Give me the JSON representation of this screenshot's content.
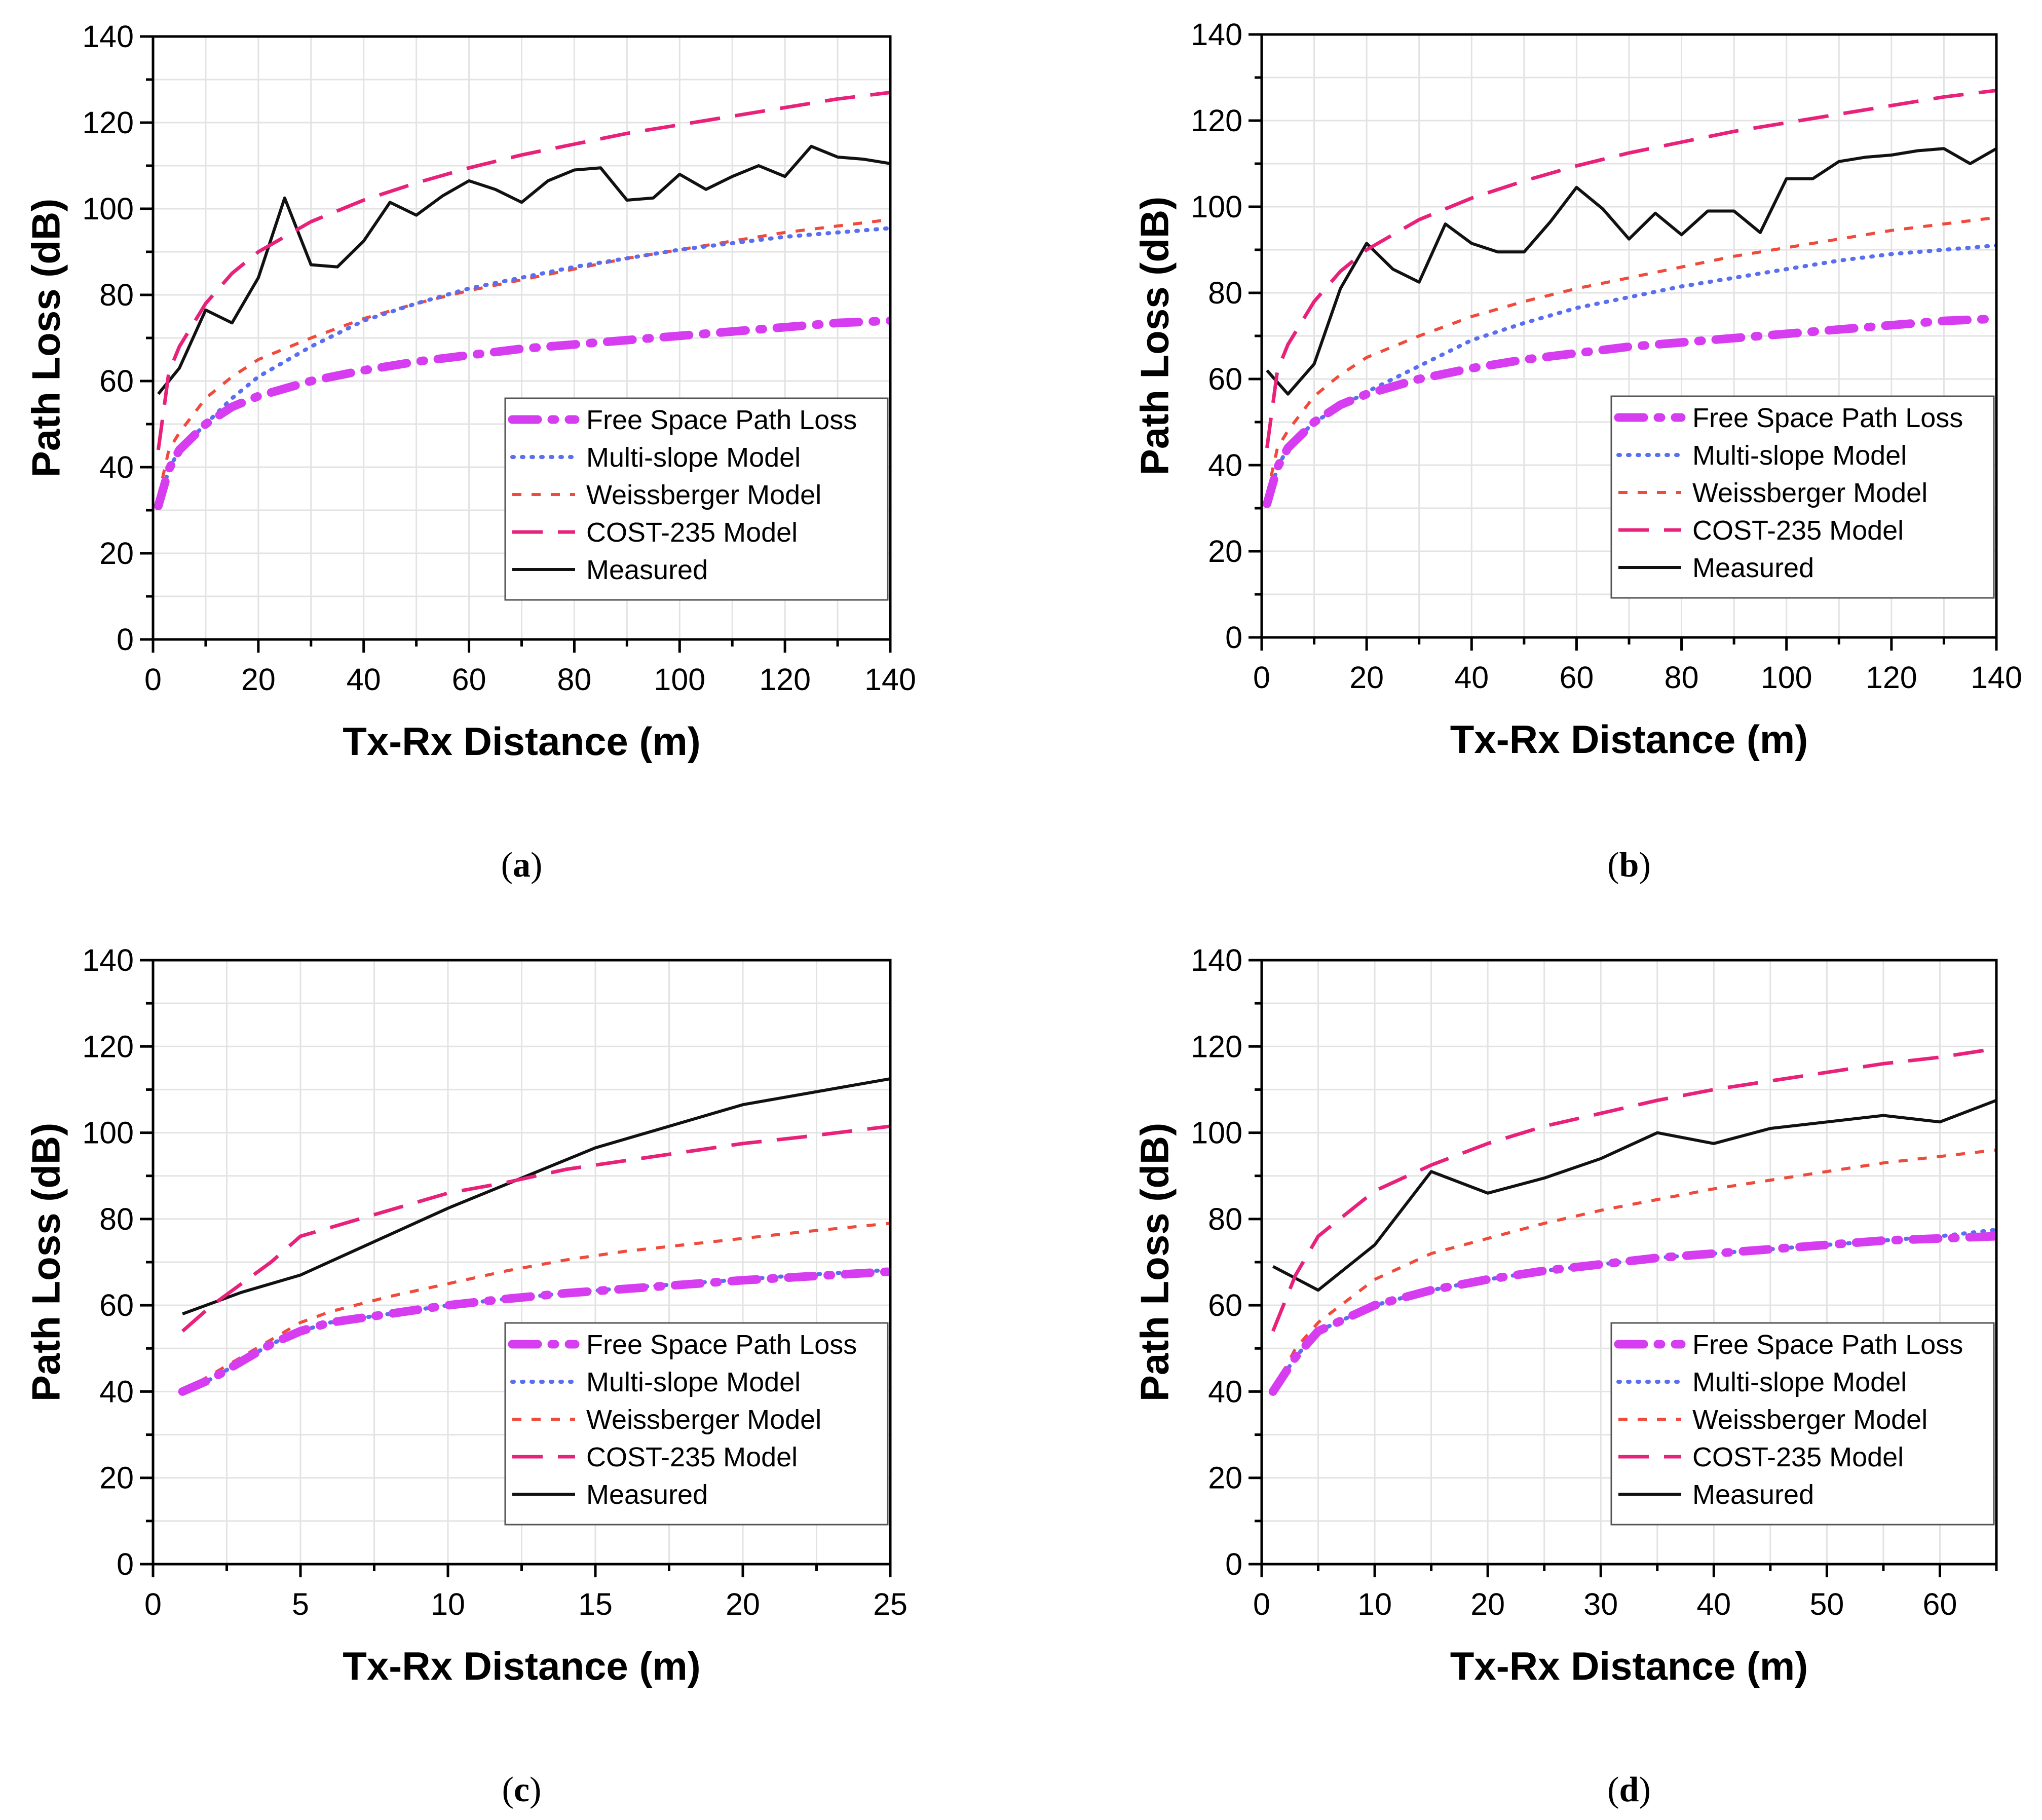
{
  "chart_data": [
    {
      "id": "a",
      "type": "line",
      "caption": "a",
      "xlabel": "Tx-Rx Distance (m)",
      "ylabel": "Path Loss (dB)",
      "xlim": [
        0,
        140
      ],
      "ylim": [
        0,
        140
      ],
      "xticks": [
        0,
        20,
        40,
        60,
        80,
        100,
        120,
        140
      ],
      "yticks": [
        0,
        20,
        40,
        60,
        80,
        100,
        120,
        140
      ],
      "grid": true,
      "legend_position": "bottom-right",
      "series": [
        {
          "name": "Free Space Path Loss",
          "style": "fspl",
          "color": "#d63cf0",
          "x": [
            1,
            3,
            5,
            10,
            15,
            20,
            30,
            40,
            50,
            60,
            70,
            80,
            90,
            100,
            110,
            120,
            130,
            140
          ],
          "y": [
            31,
            39.5,
            44,
            50,
            54,
            56.5,
            60,
            62.5,
            64.5,
            66,
            67.5,
            68.5,
            69.5,
            70.5,
            71.5,
            72.5,
            73.5,
            74
          ]
        },
        {
          "name": "Multi-slope Model",
          "style": "dotted",
          "color": "#5a6ff0",
          "x": [
            1,
            3,
            5,
            10,
            15,
            20,
            30,
            40,
            50,
            60,
            70,
            80,
            90,
            100,
            110,
            120,
            130,
            140
          ],
          "y": [
            31,
            39.5,
            44,
            50,
            56,
            61,
            68,
            74,
            78,
            81.5,
            84,
            86.5,
            88.5,
            90.5,
            92,
            93.5,
            94.5,
            95.5
          ]
        },
        {
          "name": "Weissberger Model",
          "style": "short-dash",
          "color": "#f04a3c",
          "x": [
            1,
            3,
            5,
            10,
            15,
            20,
            30,
            40,
            50,
            60,
            70,
            80,
            90,
            100,
            110,
            120,
            130,
            140
          ],
          "y": [
            33,
            44,
            48,
            56,
            61,
            65,
            70,
            74.5,
            78,
            81,
            83.5,
            86,
            88.5,
            90.5,
            92.5,
            94.5,
            96,
            97.5
          ]
        },
        {
          "name": "COST-235 Model",
          "style": "long-dash",
          "color": "#e8217a",
          "x": [
            1,
            3,
            5,
            10,
            15,
            20,
            30,
            40,
            50,
            60,
            70,
            80,
            90,
            100,
            110,
            120,
            130,
            140
          ],
          "y": [
            44,
            62,
            68,
            78,
            85,
            90,
            97,
            102,
            106,
            109.5,
            112.5,
            115,
            117.5,
            119.5,
            121.5,
            123.5,
            125.5,
            127
          ]
        },
        {
          "name": "Measured",
          "style": "solid",
          "color": "#111111",
          "x": [
            1,
            5,
            10,
            15,
            20,
            25,
            30,
            35,
            40,
            45,
            50,
            55,
            60,
            65,
            70,
            75,
            80,
            85,
            90,
            95,
            100,
            105,
            110,
            115,
            120,
            125,
            130,
            135,
            140
          ],
          "y": [
            57,
            63,
            76.5,
            73.5,
            84,
            102.5,
            87,
            86.5,
            92.5,
            101.5,
            98.5,
            103,
            106.5,
            104.5,
            101.5,
            106.5,
            109,
            109.5,
            102,
            102.5,
            108,
            104.5,
            107.5,
            110,
            107.5,
            114.5,
            112,
            111.5,
            110.5
          ]
        }
      ]
    },
    {
      "id": "b",
      "type": "line",
      "caption": "b",
      "xlabel": "Tx-Rx Distance (m)",
      "ylabel": "Path Loss (dB)",
      "xlim": [
        0,
        140
      ],
      "ylim": [
        0,
        140
      ],
      "xticks": [
        0,
        20,
        40,
        60,
        80,
        100,
        120,
        140
      ],
      "yticks": [
        0,
        20,
        40,
        60,
        80,
        100,
        120,
        140
      ],
      "grid": true,
      "legend_position": "bottom-right",
      "series": [
        {
          "name": "Free Space Path Loss",
          "style": "fspl",
          "color": "#d63cf0",
          "x": [
            1,
            3,
            5,
            10,
            15,
            20,
            30,
            40,
            50,
            60,
            70,
            80,
            90,
            100,
            110,
            120,
            130,
            140
          ],
          "y": [
            31,
            39.5,
            44,
            50,
            54,
            56.5,
            60,
            62.5,
            64.5,
            66,
            67.5,
            68.5,
            69.5,
            70.5,
            71.5,
            72.5,
            73.5,
            74
          ]
        },
        {
          "name": "Multi-slope Model",
          "style": "dotted",
          "color": "#5a6ff0",
          "x": [
            1,
            3,
            5,
            10,
            15,
            20,
            30,
            40,
            50,
            60,
            70,
            80,
            90,
            100,
            110,
            120,
            130,
            140
          ],
          "y": [
            31,
            39.5,
            44,
            50,
            53.5,
            57,
            63,
            69,
            73,
            76.5,
            79,
            81.5,
            83.5,
            85.5,
            87.5,
            89,
            90,
            91
          ]
        },
        {
          "name": "Weissberger Model",
          "style": "short-dash",
          "color": "#f04a3c",
          "x": [
            1,
            3,
            5,
            10,
            15,
            20,
            30,
            40,
            50,
            60,
            70,
            80,
            90,
            100,
            110,
            120,
            130,
            140
          ],
          "y": [
            33,
            44,
            48,
            56,
            61,
            65,
            70,
            74.5,
            78,
            81,
            83.5,
            86,
            88.5,
            90.5,
            92.5,
            94.5,
            96,
            97.5
          ]
        },
        {
          "name": "COST-235 Model",
          "style": "long-dash",
          "color": "#e8217a",
          "x": [
            1,
            3,
            5,
            10,
            15,
            20,
            30,
            40,
            50,
            60,
            70,
            80,
            90,
            100,
            110,
            120,
            130,
            140
          ],
          "y": [
            44,
            62,
            68,
            78,
            85,
            90,
            97,
            102,
            106,
            109.5,
            112.5,
            115,
            117.5,
            119.5,
            121.5,
            123.5,
            125.5,
            127
          ]
        },
        {
          "name": "Measured",
          "style": "solid",
          "color": "#111111",
          "x": [
            1,
            5,
            10,
            15,
            20,
            25,
            30,
            35,
            40,
            45,
            50,
            55,
            60,
            65,
            70,
            75,
            80,
            85,
            90,
            95,
            100,
            105,
            110,
            115,
            120,
            125,
            130,
            135,
            140
          ],
          "y": [
            62,
            56.5,
            63.5,
            81,
            91.5,
            85.5,
            82.5,
            96,
            91.5,
            89.5,
            89.5,
            96.5,
            104.5,
            99.5,
            92.5,
            98.5,
            93.5,
            99,
            99,
            94,
            106.5,
            106.5,
            110.5,
            111.5,
            112,
            113,
            113.5,
            110,
            113.5
          ]
        }
      ]
    },
    {
      "id": "c",
      "type": "line",
      "caption": "c",
      "xlabel": "Tx-Rx Distance (m)",
      "ylabel": "Path Loss (dB)",
      "xlim": [
        0,
        25
      ],
      "ylim": [
        0,
        140
      ],
      "xticks": [
        0,
        5,
        10,
        15,
        20,
        25
      ],
      "yticks": [
        0,
        20,
        40,
        60,
        80,
        100,
        120,
        140
      ],
      "grid": true,
      "legend_position": "bottom-right",
      "series": [
        {
          "name": "Free Space Path Loss",
          "style": "fspl",
          "color": "#d63cf0",
          "x": [
            1,
            2,
            3,
            4,
            5,
            6,
            8,
            10,
            12,
            14,
            16,
            18,
            20,
            22,
            25
          ],
          "y": [
            40,
            43,
            47,
            51,
            54,
            56,
            58,
            60,
            61.5,
            62.8,
            63.8,
            64.8,
            65.8,
            66.6,
            67.8
          ]
        },
        {
          "name": "Multi-slope Model",
          "style": "dotted",
          "color": "#5a6ff0",
          "x": [
            1,
            2,
            3,
            4,
            5,
            6,
            8,
            10,
            12,
            14,
            16,
            18,
            20,
            22,
            25
          ],
          "y": [
            40,
            43,
            47,
            51,
            54,
            56,
            58,
            60,
            61.5,
            62.8,
            64,
            65,
            66,
            67,
            68.2
          ]
        },
        {
          "name": "Weissberger Model",
          "style": "short-dash",
          "color": "#f04a3c",
          "x": [
            1,
            2,
            3,
            4,
            5,
            6,
            8,
            10,
            12,
            14,
            16,
            18,
            20,
            22,
            25
          ],
          "y": [
            40,
            44,
            48,
            52,
            56,
            58.5,
            62,
            65,
            68,
            70.5,
            72.5,
            74,
            75.5,
            77,
            79
          ]
        },
        {
          "name": "COST-235 Model",
          "style": "long-dash",
          "color": "#e8217a",
          "x": [
            1,
            2,
            3,
            4,
            5,
            6,
            8,
            10,
            12,
            14,
            16,
            18,
            20,
            22,
            25
          ],
          "y": [
            54,
            60,
            65,
            70,
            76,
            78,
            82,
            86,
            88.5,
            91.5,
            93.5,
            95.5,
            97.5,
            99,
            101.5
          ]
        },
        {
          "name": "Measured",
          "style": "solid",
          "color": "#111111",
          "x": [
            1,
            3,
            5,
            10,
            15,
            20,
            25
          ],
          "y": [
            58,
            63,
            67,
            82.5,
            96.5,
            106.5,
            112.5
          ]
        }
      ]
    },
    {
      "id": "d",
      "type": "line",
      "caption": "d",
      "xlabel": "Tx-Rx Distance (m)",
      "ylabel": "Path Loss (dB)",
      "xlim": [
        0,
        65
      ],
      "ylim": [
        0,
        140
      ],
      "xticks": [
        0,
        10,
        20,
        30,
        40,
        50,
        60
      ],
      "yticks": [
        0,
        20,
        40,
        60,
        80,
        100,
        120,
        140
      ],
      "grid": true,
      "legend_position": "bottom-right",
      "series": [
        {
          "name": "Free Space Path Loss",
          "style": "fspl",
          "color": "#d63cf0",
          "x": [
            1,
            3,
            5,
            10,
            15,
            20,
            25,
            30,
            35,
            40,
            45,
            50,
            55,
            60,
            65
          ],
          "y": [
            40,
            48,
            54,
            60,
            63.5,
            66,
            68,
            69.5,
            71,
            72,
            73,
            74,
            75,
            75.5,
            76
          ]
        },
        {
          "name": "Multi-slope Model",
          "style": "dotted",
          "color": "#5a6ff0",
          "x": [
            1,
            3,
            5,
            10,
            15,
            20,
            25,
            30,
            35,
            40,
            45,
            50,
            55,
            60,
            65
          ],
          "y": [
            40,
            48,
            54,
            60,
            63.5,
            66,
            68,
            69.5,
            71,
            72,
            73,
            74,
            75,
            76,
            77.5
          ]
        },
        {
          "name": "Weissberger Model",
          "style": "short-dash",
          "color": "#f04a3c",
          "x": [
            1,
            3,
            5,
            10,
            15,
            20,
            25,
            30,
            35,
            40,
            45,
            50,
            55,
            60,
            65
          ],
          "y": [
            40,
            50,
            56,
            66,
            72,
            75.5,
            79,
            82,
            84.5,
            87,
            89,
            91,
            93,
            94.5,
            96
          ]
        },
        {
          "name": "COST-235 Model",
          "style": "long-dash",
          "color": "#e8217a",
          "x": [
            1,
            3,
            5,
            10,
            15,
            20,
            25,
            30,
            35,
            40,
            45,
            50,
            55,
            60,
            65
          ],
          "y": [
            54,
            67,
            76,
            86.5,
            92.5,
            97.5,
            101.5,
            104.5,
            107.5,
            110,
            112,
            114,
            116,
            117.5,
            119.5
          ]
        },
        {
          "name": "Measured",
          "style": "solid",
          "color": "#111111",
          "x": [
            1,
            5,
            10,
            15,
            20,
            25,
            30,
            35,
            40,
            45,
            50,
            55,
            60,
            65
          ],
          "y": [
            69,
            63.5,
            74,
            91,
            86,
            89.5,
            94,
            100,
            97.5,
            101,
            102.5,
            104,
            102.5,
            107.5
          ]
        }
      ]
    }
  ]
}
